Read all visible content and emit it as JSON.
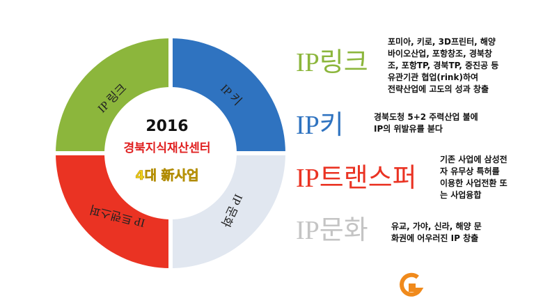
{
  "center": {
    "year": "2016",
    "org": "경북지식재산센터",
    "subtitle": "4대 新사업"
  },
  "quadrants": [
    "IP 링크",
    "IP 키",
    "IP 트랜스퍼",
    "IP 문화"
  ],
  "items": [
    {
      "title": "IP링크",
      "lines": [
        "포미아, 키로, 3D프린터, 해양",
        "바이오산업, 포항창조, 경북창",
        "조, 포항TP, 경북TP, 중진공 등",
        "유관기관 협업(rink)하여",
        "전략산업에 고도의 성과 창출"
      ]
    },
    {
      "title": "IP키",
      "lines": [
        "경북도청 5+2 주력산업 불에",
        "IP의 위발유를 붇다"
      ]
    },
    {
      "title": "IP트랜스퍼",
      "lines": [
        "기존 사업에 삼성전",
        "자 유무상 특허를",
        "이용한 사업전환 또",
        "는 사업융합"
      ]
    },
    {
      "title": "IP문화",
      "lines": [
        "유교, 가야, 신라, 해양 문",
        "화권에 어우러진 IP 창출"
      ]
    }
  ]
}
